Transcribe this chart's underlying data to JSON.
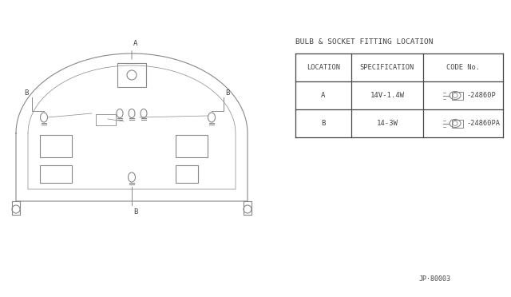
{
  "bg_color": "#f0f0ee",
  "line_color": "#888888",
  "text_color": "#444444",
  "title": "BULB & SOCKET FITTING LOCATION",
  "table_headers": [
    "LOCATION",
    "SPECIFICATION",
    "CODE No."
  ],
  "row_A": [
    "A",
    "14V-1.4W",
    "24860P"
  ],
  "row_B": [
    "B",
    "14-3W",
    "24860PA"
  ],
  "diagram_label": "JP-80003",
  "footer": "JP·80003"
}
